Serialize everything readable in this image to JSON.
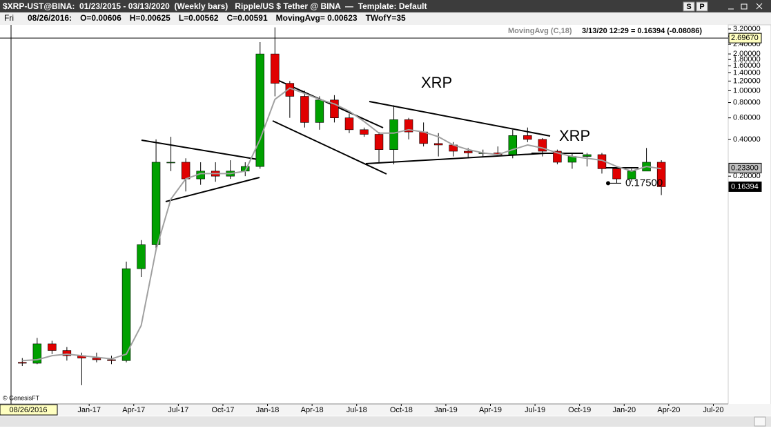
{
  "window": {
    "title": "$XRP-UST@BINA:  01/23/2015 - 03/13/2020  (Weekly bars)   Ripple/US $ Tether @ BINA  —  Template: Default",
    "buttons": [
      "S",
      "P"
    ]
  },
  "info_bar": [
    "Fri",
    "08/26/2016:",
    "O=0.00606",
    "H=0.00625",
    "L=0.00562",
    "C=0.00591",
    "MovingAvg= 0.00623",
    "TWofY=35"
  ],
  "chart_data": {
    "type": "candlestick",
    "indicator_label": "MovingAvg (C,18)",
    "cursor_readout": "3/13/20 12:29 = 0.16394 (-0.08086)",
    "cursor_date": "08/26/2016",
    "copyright": "© GenesisFT",
    "log_scale": true,
    "up_color": "#00a000",
    "down_color": "#e00000",
    "ma_color": "#a0a0a0",
    "x": [
      "2016-08",
      "2016-09",
      "2016-10",
      "2016-11",
      "2016-12",
      "2017-01",
      "2017-02",
      "2017-03",
      "2017-04",
      "2017-05",
      "2017-06",
      "2017-07",
      "2017-08",
      "2017-09",
      "2017-10",
      "2017-11",
      "2017-12",
      "2018-01",
      "2018-02",
      "2018-03",
      "2018-04",
      "2018-05",
      "2018-06",
      "2018-07",
      "2018-08",
      "2018-09",
      "2018-10",
      "2018-11",
      "2018-12",
      "2019-01",
      "2019-02",
      "2019-03",
      "2019-04",
      "2019-05",
      "2019-06",
      "2019-07",
      "2019-08",
      "2019-09",
      "2019-10",
      "2019-11",
      "2019-12",
      "2020-01",
      "2020-02",
      "2020-03"
    ],
    "open": [
      0.006,
      0.0059,
      0.0085,
      0.0075,
      0.0068,
      0.0065,
      0.0063,
      0.0062,
      0.035,
      0.055,
      0.26,
      0.26,
      0.19,
      0.22,
      0.2,
      0.22,
      0.24,
      2.0,
      1.15,
      0.9,
      0.55,
      0.84,
      0.6,
      0.48,
      0.44,
      0.33,
      0.58,
      0.46,
      0.37,
      0.36,
      0.32,
      0.31,
      0.31,
      0.3,
      0.43,
      0.4,
      0.32,
      0.26,
      0.29,
      0.3,
      0.23,
      0.19,
      0.22,
      0.26
    ],
    "high": [
      0.0065,
      0.0095,
      0.009,
      0.008,
      0.0072,
      0.0072,
      0.0068,
      0.04,
      0.06,
      0.4,
      0.42,
      0.28,
      0.26,
      0.26,
      0.27,
      0.26,
      2.5,
      3.3,
      1.2,
      1.0,
      0.9,
      0.92,
      0.65,
      0.5,
      0.46,
      0.76,
      0.6,
      0.55,
      0.45,
      0.38,
      0.34,
      0.33,
      0.35,
      0.48,
      0.5,
      0.41,
      0.33,
      0.31,
      0.31,
      0.31,
      0.24,
      0.23,
      0.34,
      0.27
    ],
    "low": [
      0.0056,
      0.0058,
      0.007,
      0.0062,
      0.0039,
      0.006,
      0.0058,
      0.006,
      0.03,
      0.05,
      0.22,
      0.15,
      0.17,
      0.18,
      0.19,
      0.2,
      0.23,
      0.9,
      0.6,
      0.5,
      0.48,
      0.55,
      0.45,
      0.42,
      0.26,
      0.25,
      0.4,
      0.35,
      0.29,
      0.29,
      0.28,
      0.29,
      0.29,
      0.28,
      0.38,
      0.29,
      0.25,
      0.23,
      0.24,
      0.21,
      0.175,
      0.18,
      0.23,
      0.14
    ],
    "close": [
      0.0059,
      0.0085,
      0.0075,
      0.0068,
      0.0065,
      0.0063,
      0.0062,
      0.035,
      0.055,
      0.26,
      0.26,
      0.19,
      0.22,
      0.2,
      0.22,
      0.24,
      2.0,
      1.15,
      0.9,
      0.55,
      0.84,
      0.6,
      0.48,
      0.44,
      0.33,
      0.58,
      0.46,
      0.37,
      0.36,
      0.32,
      0.31,
      0.31,
      0.3,
      0.43,
      0.4,
      0.32,
      0.26,
      0.29,
      0.3,
      0.23,
      0.19,
      0.22,
      0.26,
      0.1639
    ],
    "moving_avg": [
      0.0062,
      0.0063,
      0.0068,
      0.007,
      0.0068,
      0.0066,
      0.0064,
      0.007,
      0.012,
      0.05,
      0.13,
      0.19,
      0.21,
      0.21,
      0.21,
      0.22,
      0.4,
      0.85,
      1.05,
      0.95,
      0.85,
      0.78,
      0.68,
      0.56,
      0.45,
      0.45,
      0.48,
      0.46,
      0.42,
      0.36,
      0.33,
      0.31,
      0.3,
      0.33,
      0.36,
      0.34,
      0.31,
      0.29,
      0.28,
      0.27,
      0.24,
      0.22,
      0.24,
      0.23
    ],
    "xlim": [
      "2016-07",
      "2020-08"
    ],
    "xticks": [
      {
        "value": "2017-01",
        "label": "Jan-17"
      },
      {
        "value": "2017-04",
        "label": "Apr-17"
      },
      {
        "value": "2017-07",
        "label": "Jul-17"
      },
      {
        "value": "2017-10",
        "label": "Oct-17"
      },
      {
        "value": "2018-01",
        "label": "Jan-18"
      },
      {
        "value": "2018-04",
        "label": "Apr-18"
      },
      {
        "value": "2018-07",
        "label": "Jul-18"
      },
      {
        "value": "2018-10",
        "label": "Oct-18"
      },
      {
        "value": "2019-01",
        "label": "Jan-19"
      },
      {
        "value": "2019-04",
        "label": "Apr-19"
      },
      {
        "value": "2019-07",
        "label": "Jul-19"
      },
      {
        "value": "2019-10",
        "label": "Oct-19"
      },
      {
        "value": "2020-01",
        "label": "Jan-20"
      },
      {
        "value": "2020-04",
        "label": "Apr-20"
      },
      {
        "value": "2020-07",
        "label": "Jul-20"
      }
    ],
    "ylim": [
      0.00274,
      3.37
    ],
    "yticks": [
      {
        "value": 3.2,
        "label": "3.20000"
      },
      {
        "value": 2.8,
        "label": "2.80000"
      },
      {
        "value": 2.4,
        "label": "2.40000"
      },
      {
        "value": 2.0,
        "label": "2.00000"
      },
      {
        "value": 1.8,
        "label": "1.80000"
      },
      {
        "value": 1.6,
        "label": "1.60000"
      },
      {
        "value": 1.4,
        "label": "1.40000"
      },
      {
        "value": 1.2,
        "label": "1.20000"
      },
      {
        "value": 1.0,
        "label": "1.00000"
      },
      {
        "value": 0.8,
        "label": "0.80000"
      },
      {
        "value": 0.6,
        "label": "0.60000"
      },
      {
        "value": 0.4,
        "label": "0.40000"
      },
      {
        "value": 0.2,
        "label": "0.20000"
      }
    ],
    "price_boxes": [
      {
        "value": 2.6967,
        "label": "2.69670"
      },
      {
        "value": 0.233,
        "label": "0.23300"
      },
      0.16394
    ],
    "annotations": [
      {
        "value": 0.175,
        "label": "0.17500"
      }
    ],
    "labels": [
      "XRP",
      "XRP"
    ]
  }
}
